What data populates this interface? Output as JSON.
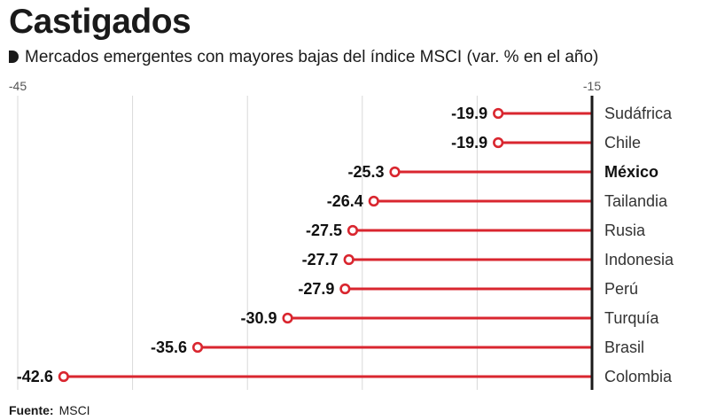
{
  "title": "Castigados",
  "subtitle": "Mercados emergentes con mayores bajas del índice MSCI (var. % en el año)",
  "source_label": "Fuente:",
  "source_value": "MSCI",
  "colors": {
    "accent": "#d9262f",
    "grid": "#d9d9d9",
    "axis": "#1a1a1a"
  },
  "chart_data": {
    "type": "lollipop",
    "title": "Castigados",
    "subtitle": "Mercados emergentes con mayores bajas del índice MSCI (var. % en el año)",
    "xlim": [
      -45,
      -15
    ],
    "x_tick_labels": [
      "-45",
      "-15"
    ],
    "grid": true,
    "highlight": "México",
    "categories": [
      "Sudáfrica",
      "Chile",
      "México",
      "Tailandia",
      "Rusia",
      "Indonesia",
      "Perú",
      "Turquía",
      "Brasil",
      "Colombia"
    ],
    "values": [
      -19.9,
      -19.9,
      -25.3,
      -26.4,
      -27.5,
      -27.7,
      -27.9,
      -30.9,
      -35.6,
      -42.6
    ],
    "value_labels": [
      "-19.9",
      "-19.9",
      "-25.3",
      "-26.4",
      "-27.5",
      "-27.7",
      "-27.9",
      "-30.9",
      "-35.6",
      "-42.6"
    ]
  }
}
